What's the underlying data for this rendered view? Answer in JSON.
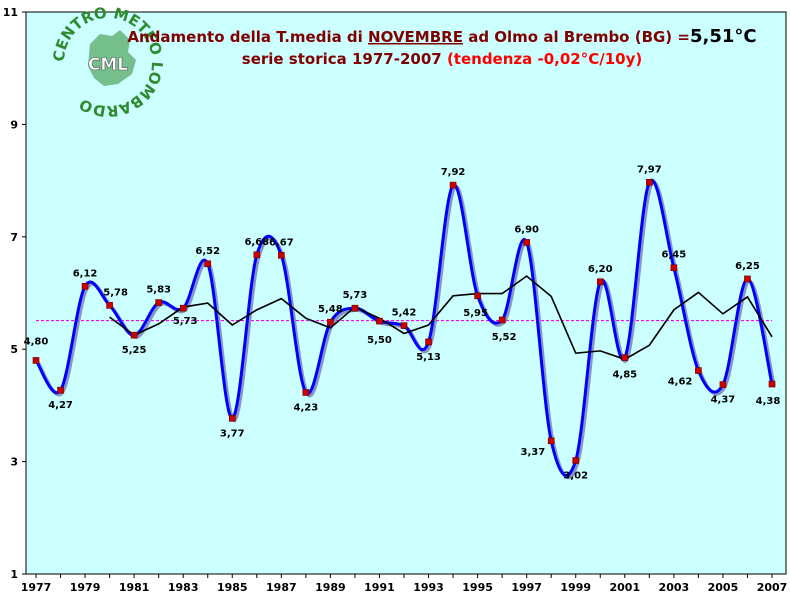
{
  "chart_data": {
    "type": "line",
    "title_prefix": "Andamento della T.media di ",
    "title_month": "NOVEMBRE",
    "title_suffix": " ad Olmo al Brembo (BG) =",
    "title_value": "5,51°C",
    "subtitle": "serie storica 1977-2007 ",
    "subtitle_trend": "(tendenza -0,02°C/10y)",
    "xlabel": "",
    "ylabel": "",
    "ylim": [
      1,
      11
    ],
    "yticks": [
      1,
      3,
      5,
      7,
      9,
      11
    ],
    "xlim": [
      1977,
      2007
    ],
    "xticks": [
      1977,
      1979,
      1981,
      1983,
      1985,
      1987,
      1989,
      1991,
      1993,
      1995,
      1997,
      1999,
      2001,
      2003,
      2005,
      2007
    ],
    "x": [
      1977,
      1978,
      1979,
      1980,
      1981,
      1982,
      1983,
      1984,
      1985,
      1986,
      1987,
      1988,
      1989,
      1990,
      1991,
      1992,
      1993,
      1994,
      1995,
      1996,
      1997,
      1998,
      1999,
      2000,
      2001,
      2002,
      2003,
      2004,
      2005,
      2006,
      2007
    ],
    "values": [
      4.8,
      4.27,
      6.12,
      5.78,
      5.25,
      5.83,
      5.73,
      6.52,
      3.77,
      6.68,
      6.67,
      4.23,
      5.48,
      5.73,
      5.5,
      5.42,
      5.13,
      7.92,
      5.95,
      5.52,
      6.9,
      3.37,
      3.02,
      6.2,
      4.85,
      7.97,
      6.45,
      4.62,
      4.37,
      6.25,
      4.38
    ],
    "labels": [
      "4,80",
      "4,27",
      "6,12",
      "5,78",
      "5,25",
      "5,83",
      "5,73",
      "6,52",
      "3,77",
      "6,68",
      "6,67",
      "4,23",
      "5,48",
      "5,73",
      "5,50",
      "5,42",
      "5,13",
      "7,92",
      "5,95",
      "5,52",
      "6,90",
      "3,37",
      "3,02",
      "6,20",
      "4,85",
      "7,97",
      "6,45",
      "4,62",
      "4,37",
      "6,25",
      "4,38"
    ],
    "moving_average": {
      "x": [
        1980,
        1981,
        1982,
        1983,
        1984,
        1985,
        1986,
        1987,
        1988,
        1989,
        1990,
        1991,
        1992,
        1993,
        1994,
        1995,
        1996,
        1997,
        1998,
        1999,
        2000,
        2001,
        2002,
        2003,
        2004,
        2005,
        2006,
        2007
      ],
      "values": [
        5.57,
        5.25,
        5.45,
        5.75,
        5.82,
        5.43,
        5.7,
        5.9,
        5.55,
        5.38,
        5.75,
        5.55,
        5.28,
        5.43,
        5.95,
        5.99,
        5.99,
        6.3,
        5.94,
        4.93,
        4.97,
        4.82,
        5.07,
        5.7,
        6.01,
        5.63,
        5.93,
        5.22
      ]
    },
    "mean_value": 5.51,
    "grid": false,
    "legend": "none",
    "colors": {
      "plot_bg": "#ccffff",
      "series": "#0000ff",
      "series_shadow": "#6a6aa8",
      "marker": "#cc0000",
      "moving_average": "#000000",
      "mean_line": "#ff00ff",
      "title": "#800000",
      "subtitle_trend": "#ff0000",
      "title_value": "#000000"
    }
  },
  "logo": {
    "text": "CENTRO METEO LOMBARDO",
    "initials": "CML",
    "color": "#2e8b2e"
  }
}
